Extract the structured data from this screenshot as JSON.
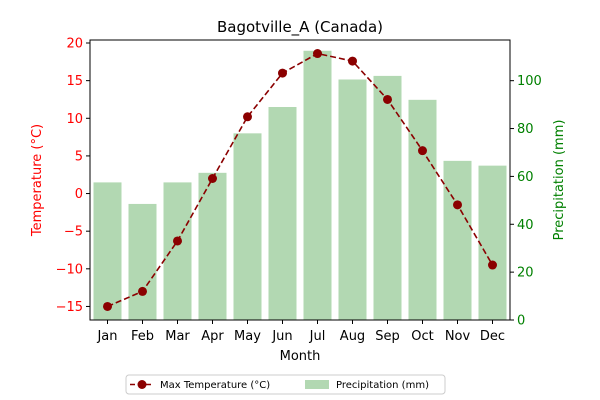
{
  "chart_data": {
    "type": "bar+line",
    "title": "Bagotville_A (Canada)",
    "xlabel": "Month",
    "categories": [
      "Jan",
      "Feb",
      "Mar",
      "Apr",
      "May",
      "Jun",
      "Jul",
      "Aug",
      "Sep",
      "Oct",
      "Nov",
      "Dec"
    ],
    "left_axis": {
      "label": "Temperature (°C)",
      "ylim": [
        -16.8,
        20.4
      ],
      "ticks": [
        -15,
        -10,
        -5,
        0,
        5,
        10,
        15,
        20
      ],
      "color": "#ff0000"
    },
    "right_axis": {
      "label": "Precipitation (mm)",
      "ylim": [
        0,
        117
      ],
      "ticks": [
        0,
        20,
        40,
        60,
        80,
        100
      ],
      "color": "#008000"
    },
    "series": [
      {
        "name": "Max Temperature (°C)",
        "type": "line",
        "axis": "left",
        "color": "#8b0000",
        "values": [
          -15.0,
          -13.0,
          -6.3,
          2.0,
          10.2,
          16.0,
          18.6,
          17.6,
          12.5,
          5.7,
          -1.5,
          -9.5
        ]
      },
      {
        "name": "Precipitation (mm)",
        "type": "bar",
        "axis": "right",
        "color": "#b2d8b2",
        "values": [
          57.5,
          48.5,
          57.5,
          61.5,
          78.0,
          89.0,
          112.5,
          100.5,
          102.0,
          92.0,
          66.5,
          64.5
        ]
      }
    ],
    "legend": "bottom-center",
    "grid": false
  }
}
